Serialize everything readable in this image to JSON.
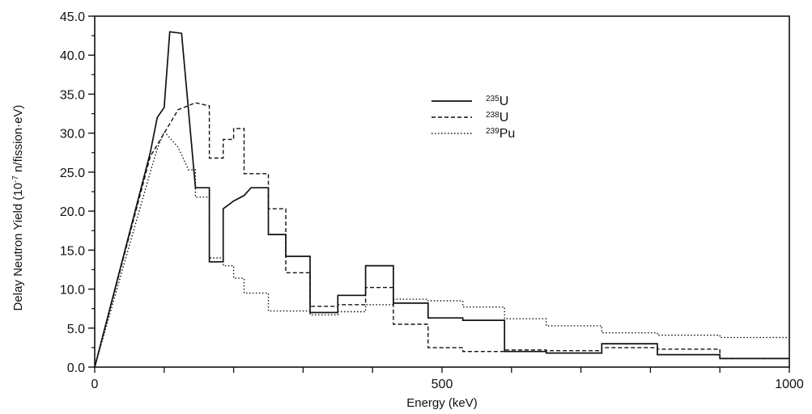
{
  "chart_data": {
    "type": "line",
    "title": "",
    "xlabel": "Energy (keV)",
    "ylabel_prefix": "Delay Neutron Yield (10",
    "ylabel_exp": "-7",
    "ylabel_suffix": " n/fission·eV)",
    "xlim": [
      0,
      1000
    ],
    "ylim": [
      0,
      45
    ],
    "grid": false,
    "legend_position": "top-center",
    "x_ticks": [
      0,
      500,
      1000
    ],
    "x_tick_labels": [
      "0",
      "500",
      "1000"
    ],
    "y_ticks": [
      0,
      5,
      10,
      15,
      20,
      25,
      30,
      35,
      40,
      45
    ],
    "y_tick_labels": [
      "0.0",
      "5.0",
      "10.0",
      "15.0",
      "20.0",
      "25.0",
      "30.0",
      "35.0",
      "40.0",
      "45.0"
    ],
    "series": [
      {
        "name_sup": "235",
        "name_base": "U",
        "style": "solid",
        "points": [
          [
            0,
            0
          ],
          [
            80,
            27.5
          ],
          [
            90,
            32
          ],
          [
            100,
            33.3
          ],
          [
            108,
            43
          ],
          [
            125,
            42.8
          ],
          [
            145,
            23
          ],
          [
            165,
            23
          ],
          [
            165,
            13.5
          ],
          [
            185,
            13.5
          ],
          [
            185,
            20.3
          ],
          [
            200,
            21.3
          ],
          [
            215,
            22
          ],
          [
            225,
            23
          ],
          [
            250,
            23
          ],
          [
            250,
            17
          ],
          [
            275,
            17
          ],
          [
            275,
            14.2
          ],
          [
            310,
            14.2
          ],
          [
            310,
            7
          ],
          [
            350,
            7
          ],
          [
            350,
            9.2
          ],
          [
            390,
            9.2
          ],
          [
            390,
            13
          ],
          [
            430,
            13
          ],
          [
            430,
            8.2
          ],
          [
            480,
            8.2
          ],
          [
            480,
            6.3
          ],
          [
            530,
            6.3
          ],
          [
            530,
            6
          ],
          [
            590,
            6
          ],
          [
            590,
            2
          ],
          [
            650,
            2
          ],
          [
            650,
            1.8
          ],
          [
            730,
            1.8
          ],
          [
            730,
            3
          ],
          [
            810,
            3
          ],
          [
            810,
            1.6
          ],
          [
            900,
            1.6
          ],
          [
            900,
            1.1
          ],
          [
            1000,
            1.1
          ]
        ]
      },
      {
        "name_sup": "238",
        "name_base": "U",
        "style": "dashed",
        "points": [
          [
            0,
            0
          ],
          [
            80,
            27
          ],
          [
            90,
            28.5
          ],
          [
            100,
            30
          ],
          [
            120,
            33
          ],
          [
            145,
            33.9
          ],
          [
            165,
            33.5
          ],
          [
            165,
            26.8
          ],
          [
            185,
            26.8
          ],
          [
            185,
            29.2
          ],
          [
            200,
            29.2
          ],
          [
            200,
            30.6
          ],
          [
            215,
            30.6
          ],
          [
            215,
            24.8
          ],
          [
            250,
            24.8
          ],
          [
            250,
            20.3
          ],
          [
            275,
            20.3
          ],
          [
            275,
            12.1
          ],
          [
            310,
            12.1
          ],
          [
            310,
            7.8
          ],
          [
            350,
            7.8
          ],
          [
            350,
            8
          ],
          [
            390,
            8
          ],
          [
            390,
            10.2
          ],
          [
            430,
            10.2
          ],
          [
            430,
            5.5
          ],
          [
            480,
            5.5
          ],
          [
            480,
            2.5
          ],
          [
            530,
            2.5
          ],
          [
            530,
            2
          ],
          [
            590,
            2
          ],
          [
            590,
            2.2
          ],
          [
            650,
            2.2
          ],
          [
            650,
            2.1
          ],
          [
            730,
            2.1
          ],
          [
            730,
            2.5
          ],
          [
            810,
            2.5
          ],
          [
            810,
            2.3
          ],
          [
            900,
            2.3
          ],
          [
            900,
            1.1
          ],
          [
            1000,
            1.1
          ]
        ]
      },
      {
        "name_sup": "239",
        "name_base": "Pu",
        "style": "dotted",
        "points": [
          [
            0,
            0
          ],
          [
            80,
            25
          ],
          [
            90,
            28
          ],
          [
            100,
            30.2
          ],
          [
            120,
            28.2
          ],
          [
            135,
            25.3
          ],
          [
            145,
            25.3
          ],
          [
            145,
            21.8
          ],
          [
            165,
            21.8
          ],
          [
            165,
            14
          ],
          [
            185,
            14
          ],
          [
            185,
            13
          ],
          [
            200,
            13
          ],
          [
            200,
            11.4
          ],
          [
            215,
            11.4
          ],
          [
            215,
            9.5
          ],
          [
            250,
            9.5
          ],
          [
            250,
            7.2
          ],
          [
            310,
            7.2
          ],
          [
            310,
            6.7
          ],
          [
            350,
            6.7
          ],
          [
            350,
            7.1
          ],
          [
            390,
            7.1
          ],
          [
            390,
            8
          ],
          [
            430,
            8
          ],
          [
            430,
            8.7
          ],
          [
            480,
            8.7
          ],
          [
            480,
            8.5
          ],
          [
            530,
            8.5
          ],
          [
            530,
            7.7
          ],
          [
            590,
            7.7
          ],
          [
            590,
            6.2
          ],
          [
            650,
            6.2
          ],
          [
            650,
            5.3
          ],
          [
            730,
            5.3
          ],
          [
            730,
            4.4
          ],
          [
            810,
            4.4
          ],
          [
            810,
            4.1
          ],
          [
            900,
            4.1
          ],
          [
            900,
            3.8
          ],
          [
            1000,
            3.8
          ]
        ]
      }
    ]
  }
}
